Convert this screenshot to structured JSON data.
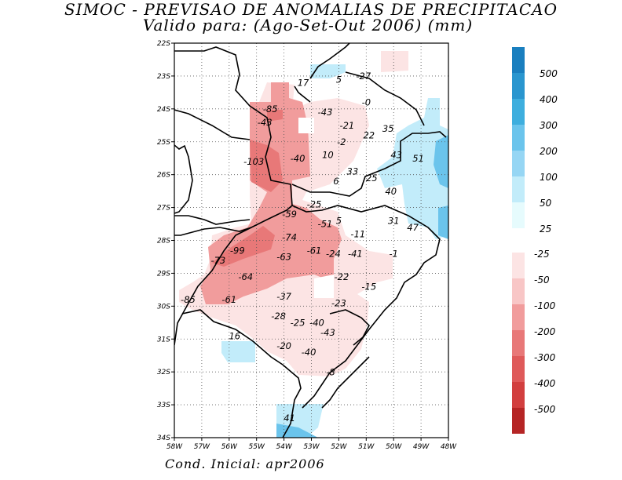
{
  "title_line1": "SIMOC - PREVISAO DE ANOMALIAS DE PRECIPITACAO",
  "title_line2": "Valido para: (Ago-Set-Out 2006) (mm)",
  "footer": "Cond. Inicial: apr2006",
  "lat_labels": [
    "22S",
    "23S",
    "24S",
    "25S",
    "26S",
    "27S",
    "28S",
    "29S",
    "30S",
    "31S",
    "32S",
    "33S",
    "34S"
  ],
  "lon_labels": [
    "58W",
    "57W",
    "56W",
    "55W",
    "54W",
    "53W",
    "52W",
    "51W",
    "50W",
    "49W",
    "48W"
  ],
  "positive_scale": {
    "labels": [
      "500",
      "400",
      "300",
      "200",
      "100",
      "50",
      "25"
    ],
    "colors": [
      "#1a7fbf",
      "#2a96cf",
      "#3eaede",
      "#6bc4ec",
      "#96d6f4",
      "#c2ecfa",
      "#e6fbfd"
    ]
  },
  "negative_scale": {
    "labels": [
      "-25",
      "-50",
      "-100",
      "-200",
      "-300",
      "-400",
      "-500"
    ],
    "colors": [
      "#fce4e4",
      "#f8c6c6",
      "#f19c9c",
      "#e87878",
      "#df5a5a",
      "#d23f3f",
      "#b52525"
    ]
  },
  "annotations": [
    {
      "text": "17",
      "lon": -53.3,
      "lat": -23.3
    },
    {
      "text": "5",
      "lon": -52.0,
      "lat": -23.2
    },
    {
      "text": "-27",
      "lon": -51.1,
      "lat": -23.1
    },
    {
      "text": "-0",
      "lon": -51.0,
      "lat": -23.9
    },
    {
      "text": "-85",
      "lon": -54.5,
      "lat": -24.1
    },
    {
      "text": "-43",
      "lon": -54.7,
      "lat": -24.5
    },
    {
      "text": "-43",
      "lon": -52.5,
      "lat": -24.2
    },
    {
      "text": "-21",
      "lon": -51.7,
      "lat": -24.6
    },
    {
      "text": "35",
      "lon": -50.2,
      "lat": -24.7
    },
    {
      "text": "22",
      "lon": -50.9,
      "lat": -24.9
    },
    {
      "text": "-2",
      "lon": -51.9,
      "lat": -25.1
    },
    {
      "text": "10",
      "lon": -52.4,
      "lat": -25.5
    },
    {
      "text": "43",
      "lon": -49.9,
      "lat": -25.5
    },
    {
      "text": "51",
      "lon": -49.1,
      "lat": -25.6
    },
    {
      "text": "-103",
      "lon": -55.1,
      "lat": -25.7
    },
    {
      "text": "-40",
      "lon": -53.5,
      "lat": -25.6
    },
    {
      "text": "33",
      "lon": -51.5,
      "lat": -26.0
    },
    {
      "text": "25",
      "lon": -50.8,
      "lat": -26.2
    },
    {
      "text": "6",
      "lon": -52.1,
      "lat": -26.3
    },
    {
      "text": "40",
      "lon": -50.1,
      "lat": -26.6
    },
    {
      "text": "-25",
      "lon": -52.9,
      "lat": -27.0
    },
    {
      "text": "-59",
      "lon": -53.8,
      "lat": -27.3
    },
    {
      "text": "-51",
      "lon": -52.5,
      "lat": -27.6
    },
    {
      "text": "5",
      "lon": -52.0,
      "lat": -27.5
    },
    {
      "text": "31",
      "lon": -50.0,
      "lat": -27.5
    },
    {
      "text": "47",
      "lon": -49.3,
      "lat": -27.7
    },
    {
      "text": "-11",
      "lon": -51.3,
      "lat": -27.9
    },
    {
      "text": "-74",
      "lon": -53.8,
      "lat": -28.0
    },
    {
      "text": "-99",
      "lon": -55.7,
      "lat": -28.4
    },
    {
      "text": "-61",
      "lon": -52.9,
      "lat": -28.4
    },
    {
      "text": "-24",
      "lon": -52.2,
      "lat": -28.5
    },
    {
      "text": "-41",
      "lon": -51.4,
      "lat": -28.5
    },
    {
      "text": "-1",
      "lon": -50.0,
      "lat": -28.5
    },
    {
      "text": "-63",
      "lon": -54.0,
      "lat": -28.6
    },
    {
      "text": "-73",
      "lon": -56.4,
      "lat": -28.7
    },
    {
      "text": "-64",
      "lon": -55.4,
      "lat": -29.2
    },
    {
      "text": "-22",
      "lon": -51.9,
      "lat": -29.2
    },
    {
      "text": "-15",
      "lon": -50.9,
      "lat": -29.5
    },
    {
      "text": "-37",
      "lon": -54.0,
      "lat": -29.8
    },
    {
      "text": "-85",
      "lon": -57.5,
      "lat": -29.9
    },
    {
      "text": "-61",
      "lon": -56.0,
      "lat": -29.9
    },
    {
      "text": "-23",
      "lon": -52.0,
      "lat": -30.0
    },
    {
      "text": "-28",
      "lon": -54.2,
      "lat": -30.4
    },
    {
      "text": "-25",
      "lon": -53.5,
      "lat": -30.6
    },
    {
      "text": "-40",
      "lon": -52.8,
      "lat": -30.6
    },
    {
      "text": "-43",
      "lon": -52.4,
      "lat": -30.9
    },
    {
      "text": "16",
      "lon": -55.8,
      "lat": -31.0
    },
    {
      "text": "-20",
      "lon": -54.0,
      "lat": -31.3
    },
    {
      "text": "-40",
      "lon": -53.1,
      "lat": -31.5
    },
    {
      "text": "-8",
      "lon": -52.3,
      "lat": -32.1
    },
    {
      "text": "41",
      "lon": -53.8,
      "lat": -33.5
    }
  ]
}
